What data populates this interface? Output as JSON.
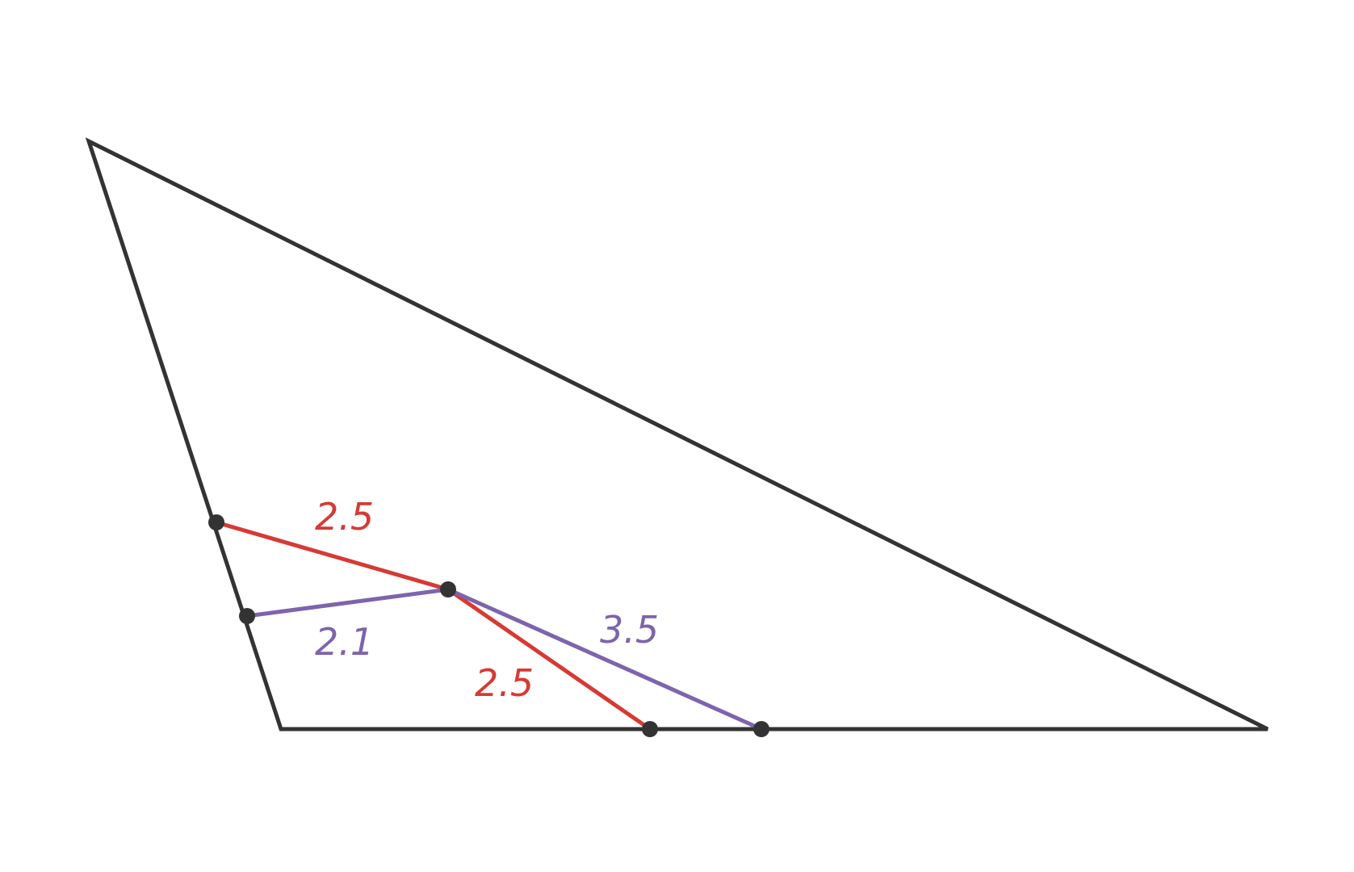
{
  "colors": {
    "outline": "#333333",
    "red": "#d63a34",
    "purple": "#7d64ad",
    "background": "#ffffff"
  },
  "labels": {
    "upper_red": "2.5",
    "lower_red": "2.5",
    "left_purple": "2.1",
    "right_purple": "3.5"
  }
}
